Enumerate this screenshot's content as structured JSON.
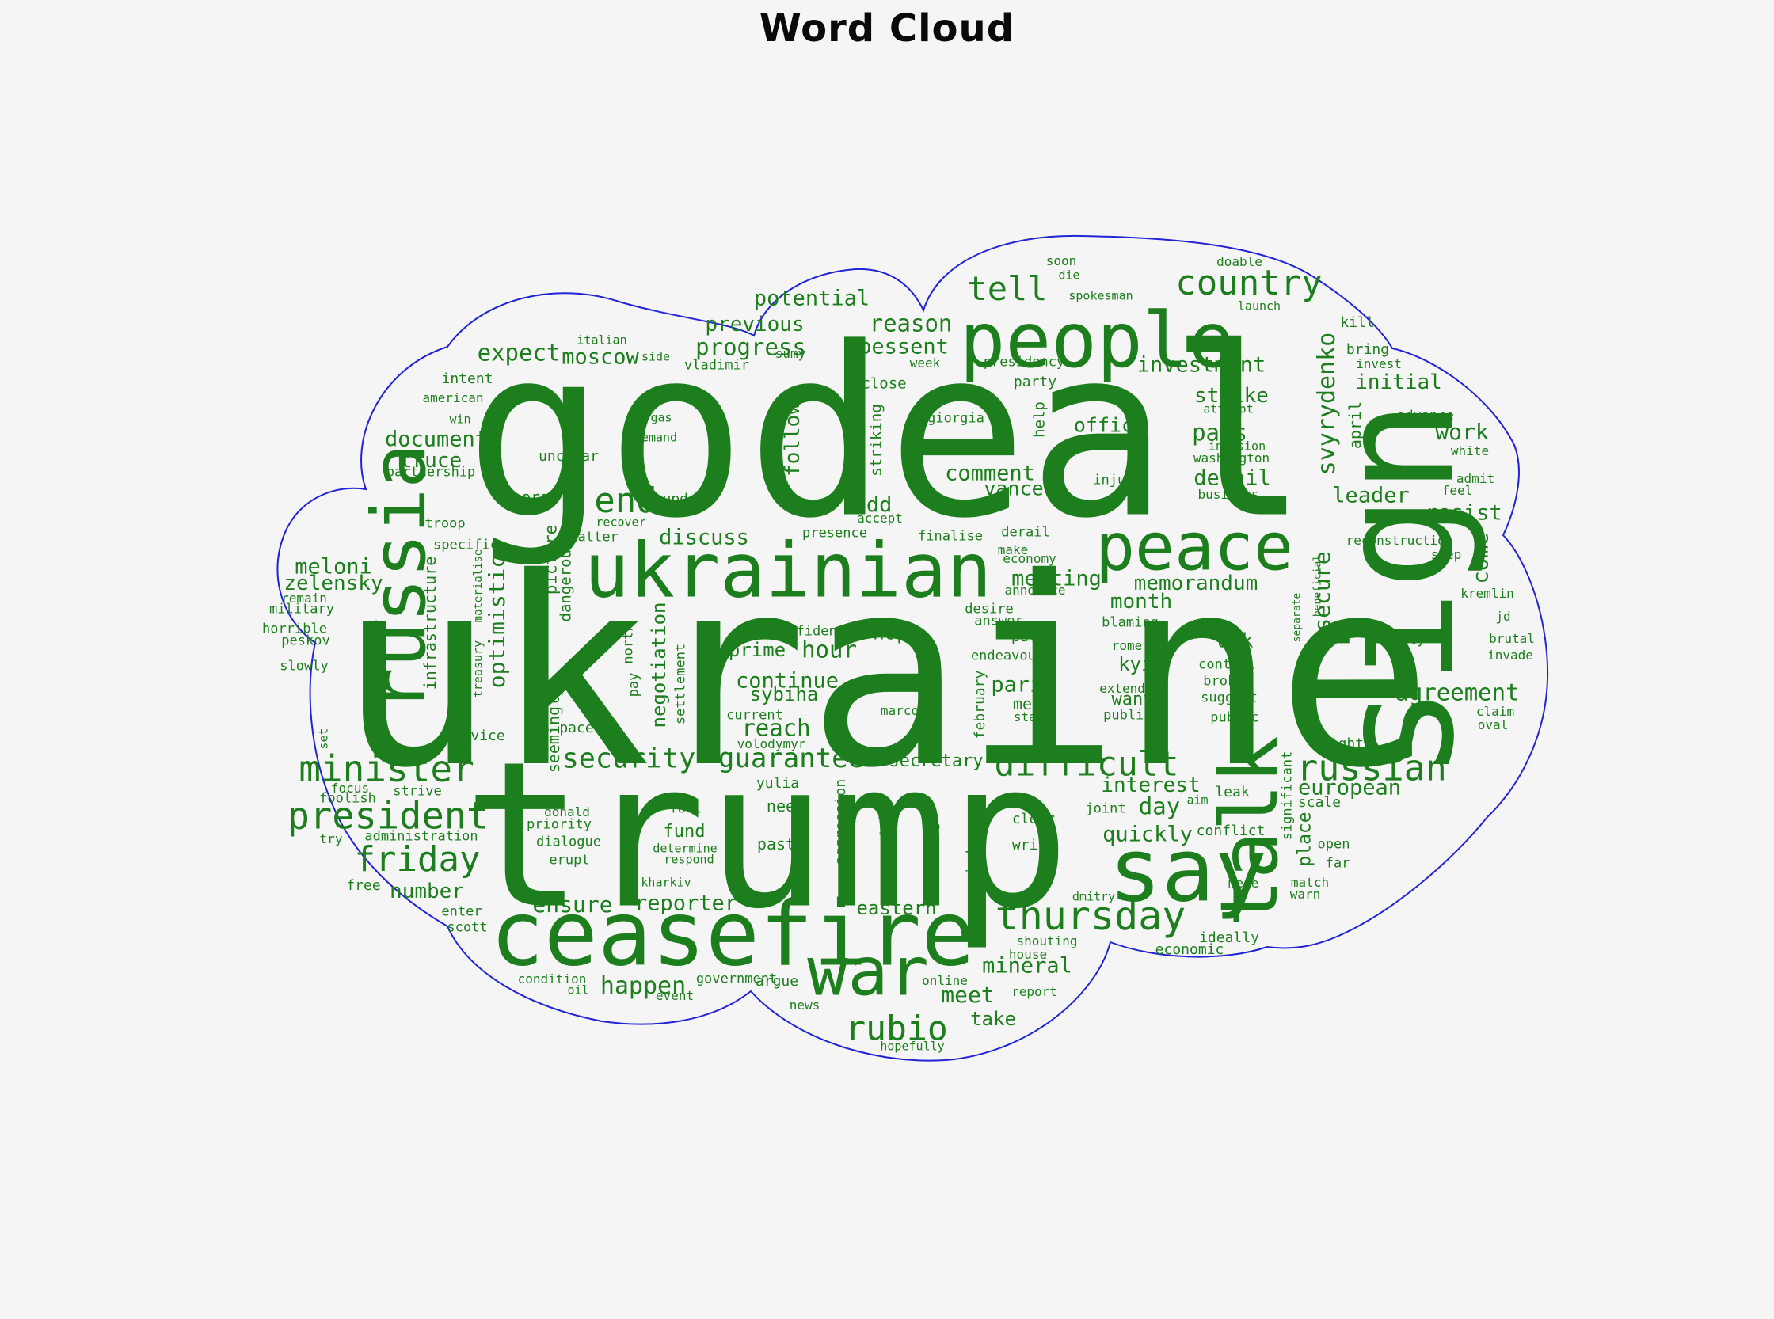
{
  "title": "Word Cloud",
  "chart_data": {
    "type": "wordcloud",
    "title": "Word Cloud",
    "text_color": "#1c7e1c",
    "outline_color": "#2323d6",
    "background_color": "#f5f5f5",
    "orientation_note": "entries are [word, center_x, center_y, font_px, vertical(1=rotated -90deg)]",
    "words": [
      [
        "ukraine",
        1118,
        852,
        328,
        0
      ],
      [
        "godeal",
        1120,
        548,
        295,
        0
      ],
      [
        "trump",
        968,
        1056,
        255,
        0
      ],
      [
        "ceasefire",
        925,
        1180,
        113,
        0
      ],
      [
        "say",
        1500,
        1100,
        111,
        0
      ],
      [
        "talk",
        1578,
        1050,
        100,
        1
      ],
      [
        "sign",
        1765,
        745,
        200,
        1
      ],
      [
        "russia",
        505,
        730,
        94,
        1
      ],
      [
        "ukrainian",
        995,
        722,
        95,
        0
      ],
      [
        "people",
        1385,
        430,
        96,
        0
      ],
      [
        "peace",
        1508,
        691,
        83,
        0
      ],
      [
        "war",
        1096,
        1228,
        85,
        0
      ],
      [
        "thursday",
        1377,
        1157,
        50,
        0
      ],
      [
        "president",
        490,
        1031,
        47,
        0
      ],
      [
        "minister",
        488,
        971,
        46,
        0
      ],
      [
        "friday",
        527,
        1086,
        44,
        0
      ],
      [
        "difficult",
        1372,
        966,
        43,
        0
      ],
      [
        "russian",
        1732,
        970,
        45,
        0
      ],
      [
        "country",
        1577,
        358,
        44,
        0
      ],
      [
        "tell",
        1272,
        365,
        42,
        0
      ],
      [
        "rubio",
        1132,
        1300,
        43,
        0
      ],
      [
        "end",
        790,
        633,
        44,
        0
      ],
      [
        "guarantee",
        999,
        958,
        34,
        0
      ],
      [
        "security",
        794,
        959,
        35,
        0
      ],
      [
        "expect",
        655,
        446,
        29,
        0
      ],
      [
        "moscow",
        758,
        451,
        27,
        0
      ],
      [
        "progress",
        948,
        439,
        29,
        0
      ],
      [
        "previous",
        953,
        410,
        26,
        0
      ],
      [
        "potential",
        1025,
        377,
        27,
        0
      ],
      [
        "reason",
        1150,
        409,
        29,
        0
      ],
      [
        "bessent",
        1141,
        438,
        27,
        0
      ],
      [
        "investment",
        1517,
        461,
        27,
        0
      ],
      [
        "strike",
        1555,
        500,
        26,
        0
      ],
      [
        "pass",
        1540,
        547,
        29,
        0
      ],
      [
        "detail",
        1556,
        604,
        27,
        0
      ],
      [
        "initial",
        1766,
        483,
        26,
        0
      ],
      [
        "work",
        1846,
        546,
        28,
        0
      ],
      [
        "leader",
        1731,
        626,
        27,
        0
      ],
      [
        "resist",
        1848,
        648,
        27,
        0
      ],
      [
        "agreement",
        1840,
        875,
        29,
        0
      ],
      [
        "document",
        551,
        555,
        27,
        0
      ],
      [
        "truce",
        544,
        582,
        26,
        0
      ],
      [
        "meloni",
        421,
        716,
        27,
        0
      ],
      [
        "zelensky",
        421,
        737,
        26,
        0
      ],
      [
        "discuss",
        889,
        679,
        27,
        0
      ],
      [
        "add",
        1102,
        638,
        27,
        0
      ],
      [
        "comment",
        1250,
        598,
        27,
        0
      ],
      [
        "vance",
        1280,
        617,
        25,
        0
      ],
      [
        "office",
        1401,
        537,
        25,
        0
      ],
      [
        "meeting",
        1334,
        731,
        27,
        0
      ],
      [
        "memorandum",
        1510,
        737,
        26,
        0
      ],
      [
        "month",
        1441,
        760,
        26,
        0
      ],
      [
        "kyiv",
        1441,
        839,
        24,
        0
      ],
      [
        "want",
        1430,
        884,
        22,
        0
      ],
      [
        "paris",
        1292,
        865,
        27,
        0
      ],
      [
        "memo",
        1303,
        889,
        20,
        0
      ],
      [
        "state",
        1304,
        906,
        16,
        0
      ],
      [
        "hope",
        1132,
        799,
        25,
        0
      ],
      [
        "prime",
        956,
        821,
        24,
        0
      ],
      [
        "hour",
        1047,
        821,
        29,
        0
      ],
      [
        "continue",
        994,
        860,
        27,
        0
      ],
      [
        "sybiha",
        990,
        877,
        24,
        0
      ],
      [
        "reach",
        980,
        920,
        29,
        0
      ],
      [
        "eastern",
        1132,
        1147,
        24,
        0
      ],
      [
        "secretary",
        1182,
        962,
        22,
        0
      ],
      [
        "interest",
        1453,
        992,
        26,
        0
      ],
      [
        "quickly",
        1449,
        1054,
        27,
        0
      ],
      [
        "day",
        1464,
        1019,
        29,
        0
      ],
      [
        "mineral",
        1297,
        1220,
        27,
        0
      ],
      [
        "meet",
        1222,
        1257,
        28,
        0
      ],
      [
        "take",
        1254,
        1287,
        24,
        0
      ],
      [
        "happen",
        812,
        1246,
        30,
        0
      ],
      [
        "ensure",
        723,
        1143,
        28,
        0
      ],
      [
        "reporter",
        866,
        1141,
        27,
        0
      ],
      [
        "number",
        539,
        1126,
        26,
        0
      ],
      [
        "european",
        1704,
        995,
        27,
        0
      ],
      [
        "ask",
        1560,
        809,
        25,
        0
      ],
      [
        "energy",
        670,
        628,
        20,
        0
      ],
      [
        "fund",
        864,
        1051,
        22,
        0
      ],
      [
        "need",
        992,
        1018,
        20,
        0
      ],
      [
        "past",
        980,
        1066,
        20,
        0
      ],
      [
        "follow",
        1001,
        555,
        26,
        1
      ],
      [
        "optimistic",
        628,
        785,
        28,
        1
      ],
      [
        "svyrydenko",
        1676,
        510,
        30,
        1
      ],
      [
        "secure",
        1670,
        747,
        28,
        1
      ],
      [
        "come",
        1870,
        705,
        27,
        1
      ],
      [
        "negotiation",
        832,
        840,
        24,
        1
      ],
      [
        "place",
        1648,
        1060,
        23,
        1
      ],
      [
        "italian",
        760,
        430,
        15,
        0
      ],
      [
        "side",
        828,
        451,
        15,
        0
      ],
      [
        "sumy",
        998,
        447,
        16,
        0
      ],
      [
        "vladimir",
        905,
        462,
        17,
        0
      ],
      [
        "intent",
        590,
        479,
        18,
        0
      ],
      [
        "american",
        572,
        503,
        16,
        0
      ],
      [
        "win",
        581,
        530,
        15,
        0
      ],
      [
        "partnership",
        544,
        597,
        17,
        0
      ],
      [
        "unclear",
        718,
        577,
        18,
        0
      ],
      [
        "gas",
        835,
        528,
        15,
        0
      ],
      [
        "demand",
        828,
        553,
        15,
        0
      ],
      [
        "week",
        1168,
        459,
        16,
        0
      ],
      [
        "presidency",
        1293,
        458,
        17,
        0
      ],
      [
        "party",
        1307,
        483,
        18,
        0
      ],
      [
        "close",
        1116,
        485,
        19,
        0
      ],
      [
        "giorgia",
        1207,
        529,
        17,
        0
      ],
      [
        "soon",
        1340,
        330,
        16,
        0
      ],
      [
        "die",
        1350,
        348,
        15,
        0
      ],
      [
        "spokesman",
        1390,
        374,
        15,
        0
      ],
      [
        "doable",
        1565,
        331,
        16,
        0
      ],
      [
        "launch",
        1590,
        387,
        15,
        0
      ],
      [
        "kill",
        1714,
        408,
        18,
        0
      ],
      [
        "bring",
        1727,
        442,
        18,
        0
      ],
      [
        "invest",
        1741,
        460,
        16,
        0
      ],
      [
        "attempt",
        1551,
        517,
        15,
        0
      ],
      [
        "invasion",
        1562,
        564,
        15,
        0
      ],
      [
        "washington",
        1555,
        579,
        16,
        0
      ],
      [
        "business",
        1551,
        625,
        16,
        0
      ],
      [
        "injure",
        1411,
        607,
        17,
        0
      ],
      [
        "white",
        1856,
        570,
        16,
        0
      ],
      [
        "admit",
        1863,
        605,
        16,
        0
      ],
      [
        "feel",
        1840,
        620,
        16,
        0
      ],
      [
        "advance",
        1800,
        526,
        17,
        0
      ],
      [
        "reconstruction",
        1767,
        683,
        16,
        0
      ],
      [
        "step",
        1826,
        701,
        16,
        0
      ],
      [
        "kremlin",
        1878,
        750,
        16,
        0
      ],
      [
        "jd",
        1898,
        779,
        16,
        0
      ],
      [
        "brutal",
        1909,
        807,
        16,
        0
      ],
      [
        "invade",
        1907,
        828,
        16,
        0
      ],
      [
        "city",
        1778,
        808,
        18,
        0
      ],
      [
        "claim",
        1888,
        899,
        16,
        0
      ],
      [
        "oval",
        1885,
        916,
        16,
        0
      ],
      [
        "fight",
        1695,
        940,
        18,
        0
      ],
      [
        "scale",
        1666,
        1014,
        18,
        0
      ],
      [
        "open",
        1684,
        1067,
        17,
        0
      ],
      [
        "far",
        1689,
        1091,
        17,
        0
      ],
      [
        "match",
        1654,
        1115,
        16,
        0
      ],
      [
        "warn",
        1648,
        1130,
        16,
        0
      ],
      [
        "mere",
        1570,
        1116,
        16,
        0
      ],
      [
        "conflict",
        1554,
        1050,
        18,
        0
      ],
      [
        "leak",
        1556,
        1001,
        18,
        0
      ],
      [
        "aim",
        1512,
        1011,
        15,
        0
      ],
      [
        "joint",
        1396,
        1022,
        17,
        0
      ],
      [
        "ideally",
        1552,
        1185,
        18,
        0
      ],
      [
        "economic",
        1502,
        1200,
        18,
        0
      ],
      [
        "dmitry",
        1381,
        1133,
        15,
        0
      ],
      [
        "shouting",
        1322,
        1189,
        16,
        0
      ],
      [
        "house",
        1298,
        1206,
        16,
        0
      ],
      [
        "report",
        1306,
        1253,
        16,
        0
      ],
      [
        "online",
        1193,
        1239,
        16,
        0
      ],
      [
        "hopefully",
        1152,
        1322,
        15,
        0
      ],
      [
        "news",
        1016,
        1270,
        16,
        0
      ],
      [
        "argue",
        981,
        1240,
        18,
        0
      ],
      [
        "government",
        930,
        1237,
        17,
        0
      ],
      [
        "condition",
        697,
        1237,
        16,
        0
      ],
      [
        "oil",
        730,
        1251,
        15,
        0
      ],
      [
        "event",
        852,
        1258,
        16,
        0
      ],
      [
        "enter",
        583,
        1152,
        17,
        0
      ],
      [
        "scott",
        590,
        1172,
        17,
        0
      ],
      [
        "free",
        459,
        1119,
        18,
        0
      ],
      [
        "donald",
        716,
        1026,
        16,
        0
      ],
      [
        "priority",
        706,
        1042,
        17,
        0
      ],
      [
        "dialogue",
        718,
        1064,
        17,
        0
      ],
      [
        "erupt",
        719,
        1087,
        17,
        0
      ],
      [
        "focus",
        442,
        996,
        16,
        0
      ],
      [
        "strive",
        527,
        1000,
        17,
        0
      ],
      [
        "foolish",
        439,
        1009,
        17,
        0
      ],
      [
        "try",
        418,
        1060,
        16,
        0
      ],
      [
        "administration",
        532,
        1057,
        17,
        0
      ],
      [
        "remain",
        384,
        756,
        16,
        0
      ],
      [
        "military",
        381,
        770,
        17,
        0
      ],
      [
        "horrible",
        372,
        795,
        17,
        0
      ],
      [
        "peskov",
        386,
        810,
        17,
        0
      ],
      [
        "slowly",
        384,
        842,
        17,
        0
      ],
      [
        "troop",
        562,
        662,
        17,
        0
      ],
      [
        "specific",
        588,
        689,
        17,
        0
      ],
      [
        "matter",
        750,
        679,
        17,
        0
      ],
      [
        "update",
        869,
        631,
        18,
        0
      ],
      [
        "recover",
        784,
        660,
        15,
        0
      ],
      [
        "presence",
        1054,
        674,
        17,
        0
      ],
      [
        "accept",
        1111,
        655,
        16,
        0
      ],
      [
        "finalise",
        1200,
        678,
        17,
        0
      ],
      [
        "derail",
        1295,
        673,
        17,
        0
      ],
      [
        "make",
        1279,
        695,
        16,
        0
      ],
      [
        "economy",
        1300,
        706,
        16,
        0
      ],
      [
        "announce",
        1307,
        746,
        16,
        0
      ],
      [
        "desire",
        1249,
        770,
        17,
        0
      ],
      [
        "answer",
        1261,
        785,
        17,
        0
      ],
      [
        "putin",
        1304,
        805,
        18,
        0
      ],
      [
        "endeavour",
        1272,
        829,
        17,
        0
      ],
      [
        "blaming",
        1427,
        787,
        17,
        0
      ],
      [
        "rome",
        1423,
        816,
        16,
        0
      ],
      [
        "extend",
        1417,
        870,
        16,
        0
      ],
      [
        "publish",
        1429,
        904,
        17,
        0
      ],
      [
        "control",
        1549,
        840,
        17,
        0
      ],
      [
        "broker",
        1550,
        861,
        17,
        0
      ],
      [
        "suggest",
        1552,
        882,
        17,
        0
      ],
      [
        "public",
        1559,
        907,
        17,
        0
      ],
      [
        "confidence",
        1026,
        798,
        17,
        0
      ],
      [
        "current",
        953,
        904,
        17,
        0
      ],
      [
        "volodymyr",
        974,
        940,
        16,
        0
      ],
      [
        "marco",
        1136,
        898,
        16,
        0
      ],
      [
        "yulia",
        982,
        990,
        18,
        0
      ],
      [
        "fool",
        866,
        1022,
        17,
        0
      ],
      [
        "determine",
        865,
        1072,
        15,
        0
      ],
      [
        "respond",
        870,
        1086,
        15,
        0
      ],
      [
        "kharkiv",
        841,
        1115,
        15,
        0
      ],
      [
        "vice",
        616,
        930,
        18,
        0
      ],
      [
        "pace",
        728,
        920,
        18,
        0
      ],
      [
        "clear",
        1305,
        1035,
        18,
        0
      ],
      [
        "write",
        1305,
        1068,
        18,
        0
      ],
      [
        "striking",
        1107,
        556,
        19,
        1
      ],
      [
        "abandon",
        976,
        579,
        19,
        1
      ],
      [
        "help",
        1313,
        530,
        19,
        1
      ],
      [
        "april",
        1711,
        537,
        20,
        1
      ],
      [
        "beneficial",
        1664,
        740,
        13,
        1
      ],
      [
        "separate",
        1638,
        780,
        13,
        1
      ],
      [
        "exactly",
        1655,
        845,
        16,
        1
      ],
      [
        "seemingly",
        699,
        922,
        20,
        1
      ],
      [
        "picture",
        696,
        707,
        21,
        1
      ],
      [
        "dangerous",
        715,
        734,
        19,
        1
      ],
      [
        "infrastructure",
        543,
        787,
        20,
        1
      ],
      [
        "treasury",
        604,
        845,
        15,
        1
      ],
      [
        "materialise",
        604,
        740,
        14,
        1
      ],
      [
        "settlement",
        860,
        864,
        17,
        1
      ],
      [
        "north",
        794,
        813,
        17,
        1
      ],
      [
        "pay",
        801,
        865,
        17,
        1
      ],
      [
        "set",
        409,
        933,
        15,
        1
      ],
      [
        "negotiator",
        478,
        831,
        16,
        1
      ],
      [
        "aggression",
        1062,
        1038,
        18,
        1
      ],
      [
        "separately",
        1118,
        1068,
        18,
        1
      ],
      [
        "sovereign",
        1177,
        1078,
        19,
        1
      ],
      [
        "prejudge",
        1228,
        1095,
        18,
        1
      ],
      [
        "significant",
        1626,
        1005,
        17,
        1
      ],
      [
        "february",
        1238,
        890,
        18,
        1
      ]
    ]
  }
}
